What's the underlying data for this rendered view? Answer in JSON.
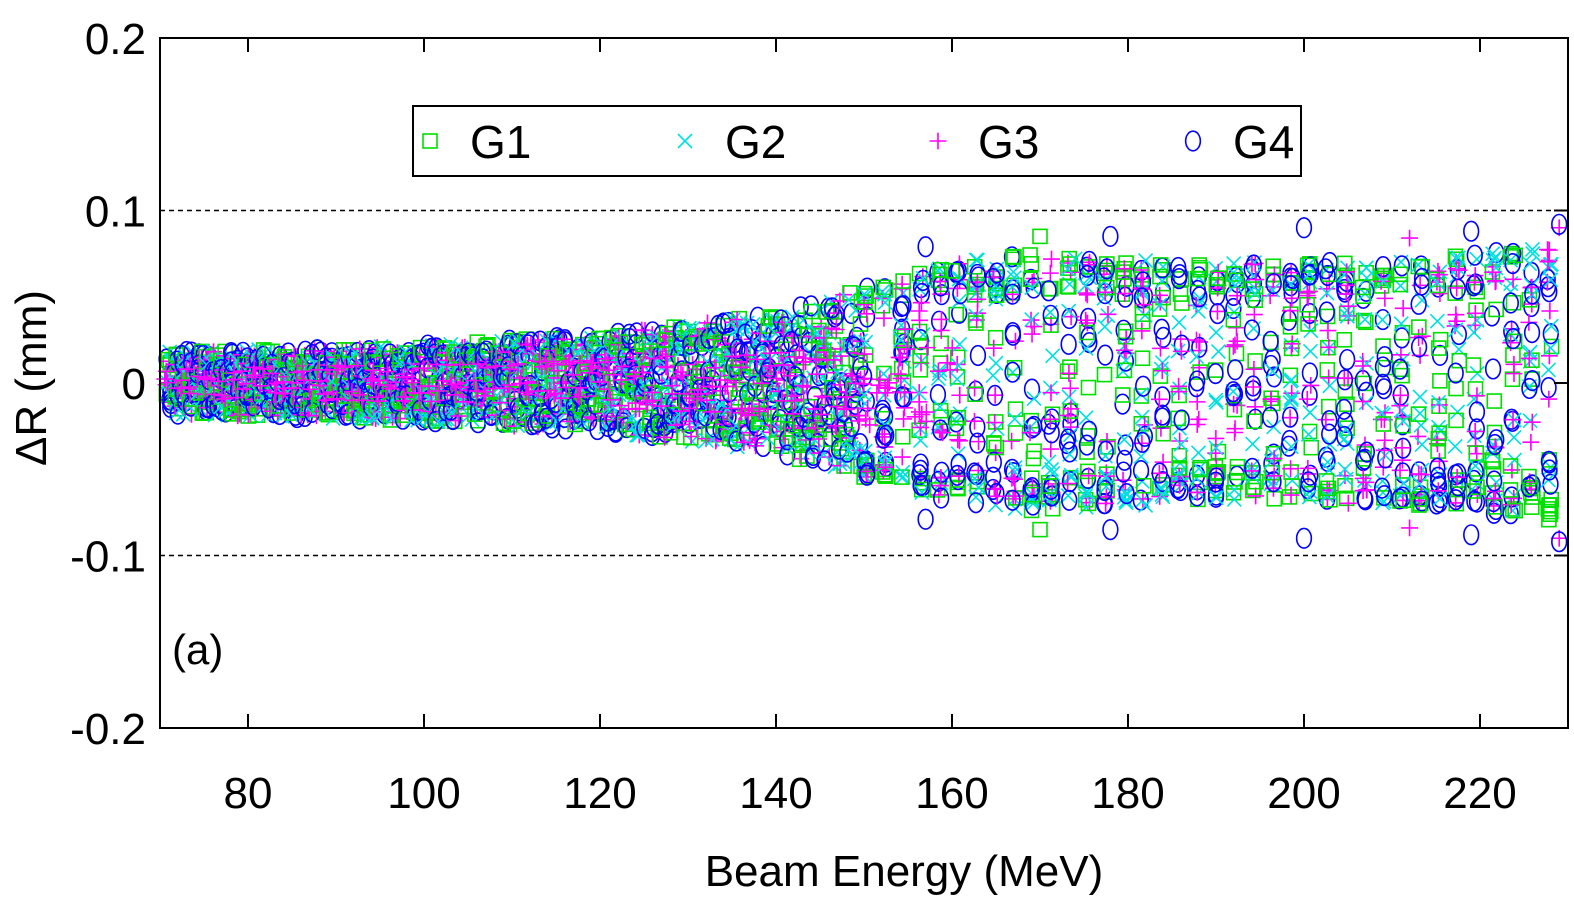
{
  "chart_data": {
    "type": "scatter",
    "xlabel": "Beam Energy (MeV)",
    "ylabel": "ΔR (mm)",
    "xlim": [
      70,
      230
    ],
    "ylim": [
      -0.2,
      0.2
    ],
    "x_ticks": [
      80,
      100,
      120,
      140,
      160,
      180,
      200,
      220
    ],
    "x_tick_labels": [
      "80",
      "100",
      "120",
      "140",
      "160",
      "180",
      "200",
      "220"
    ],
    "y_ticks": [
      0.2,
      0.1,
      0,
      -0.1,
      -0.2
    ],
    "y_tick_labels": [
      "0.2",
      "0.1",
      "0",
      "-0.1",
      "-0.2"
    ],
    "reference_lines": [
      0.1,
      -0.1
    ],
    "annotation": "(a)",
    "legend_position": "top-center",
    "grid": false,
    "envelope": {
      "x": [
        70,
        100,
        120,
        140,
        150,
        160,
        170,
        180,
        190,
        200,
        210,
        220,
        229
      ],
      "max_abs_y": [
        0.018,
        0.022,
        0.028,
        0.04,
        0.055,
        0.07,
        0.075,
        0.07,
        0.07,
        0.07,
        0.07,
        0.075,
        0.08
      ]
    },
    "series": [
      {
        "name": "G1",
        "marker": "square",
        "color": "#00e000"
      },
      {
        "name": "G2",
        "marker": "x",
        "color": "#00e0e0"
      },
      {
        "name": "G3",
        "marker": "plus",
        "color": "#ff00ff"
      },
      {
        "name": "G4",
        "marker": "circle",
        "color": "#0000ff"
      }
    ],
    "outliers": [
      {
        "series": "G1",
        "x": 170,
        "y": 0.085
      },
      {
        "series": "G1",
        "x": 170,
        "y": -0.085
      },
      {
        "series": "G1",
        "x": 160,
        "y": 0.065
      },
      {
        "series": "G1",
        "x": 224,
        "y": 0.074
      },
      {
        "series": "G1",
        "x": 224,
        "y": -0.074
      },
      {
        "series": "G2",
        "x": 174,
        "y": 0.072
      },
      {
        "series": "G2",
        "x": 182,
        "y": 0.071
      },
      {
        "series": "G2",
        "x": 182,
        "y": -0.071
      },
      {
        "series": "G2",
        "x": 226,
        "y": 0.075
      },
      {
        "series": "G3",
        "x": 212,
        "y": 0.084
      },
      {
        "series": "G3",
        "x": 212,
        "y": -0.084
      },
      {
        "series": "G3",
        "x": 229,
        "y": 0.09
      },
      {
        "series": "G3",
        "x": 229,
        "y": -0.09
      },
      {
        "series": "G4",
        "x": 157,
        "y": 0.079
      },
      {
        "series": "G4",
        "x": 157,
        "y": -0.079
      },
      {
        "series": "G4",
        "x": 178,
        "y": 0.085
      },
      {
        "series": "G4",
        "x": 178,
        "y": -0.085
      },
      {
        "series": "G4",
        "x": 200,
        "y": 0.09
      },
      {
        "series": "G4",
        "x": 200,
        "y": -0.09
      },
      {
        "series": "G4",
        "x": 219,
        "y": 0.088
      },
      {
        "series": "G4",
        "x": 219,
        "y": -0.088
      },
      {
        "series": "G4",
        "x": 229,
        "y": 0.092
      },
      {
        "series": "G4",
        "x": 229,
        "y": -0.092
      }
    ]
  }
}
